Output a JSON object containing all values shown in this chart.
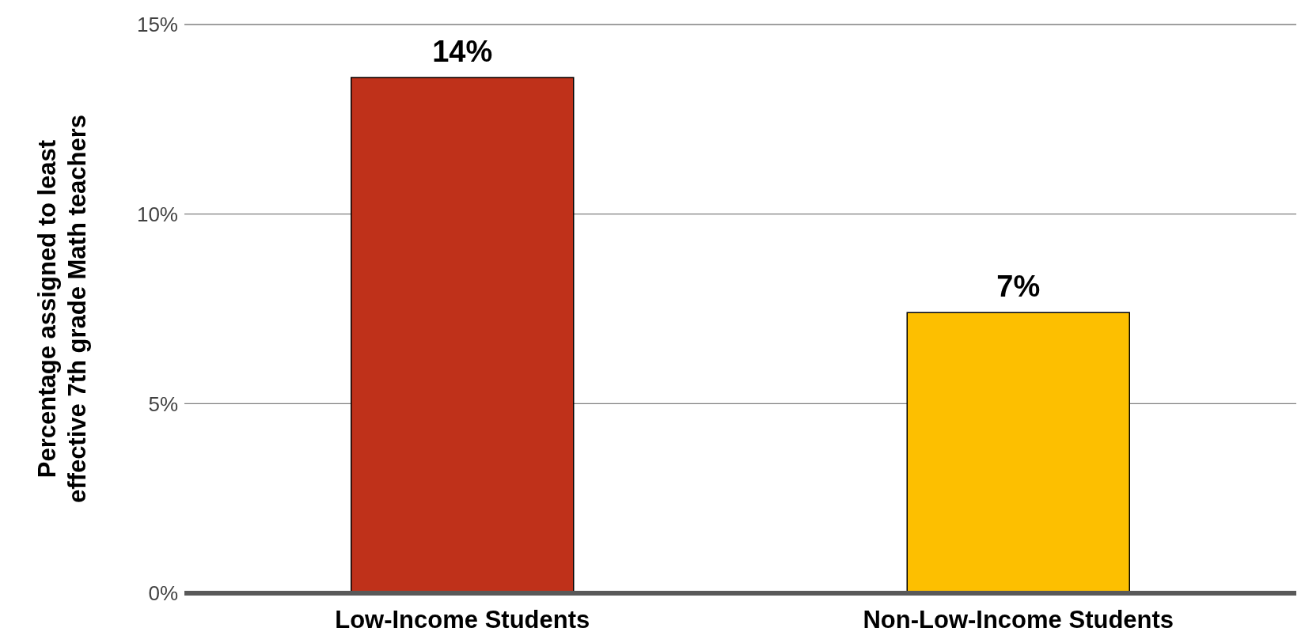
{
  "chart_data": {
    "type": "bar",
    "ylabel": "Percentage assigned to least effective 7th grade Math teachers",
    "categories": [
      "Low-Income Students",
      "Non-Low-Income Students"
    ],
    "values": [
      13.6,
      7.4
    ],
    "colors": [
      "#bf311a",
      "#fdbf00"
    ],
    "value_labels": [
      "14%",
      "7%"
    ],
    "ylim": [
      0,
      15
    ],
    "yticks": [
      {
        "value": 0,
        "label": "0%"
      },
      {
        "value": 5,
        "label": "5%"
      },
      {
        "value": 10,
        "label": "10%"
      },
      {
        "value": 15,
        "label": "15%"
      }
    ],
    "grid": "y"
  }
}
